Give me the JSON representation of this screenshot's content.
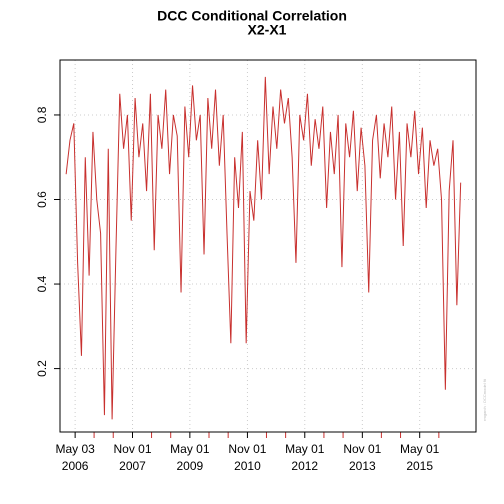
{
  "chart_data": {
    "type": "line",
    "title": "DCC Conditional Correlation",
    "subtitle": "X2-X1",
    "watermark": "rmgarch : DCCmodel fit",
    "color": "#c8302e",
    "grid": true,
    "x": [
      2006.1,
      2006.2,
      2006.3,
      2006.4,
      2006.5,
      2006.6,
      2006.7,
      2006.8,
      2006.9,
      2007.0,
      2007.1,
      2007.2,
      2007.3,
      2007.4,
      2007.5,
      2007.6,
      2007.7,
      2007.8,
      2007.9,
      2008.0,
      2008.1,
      2008.2,
      2008.3,
      2008.4,
      2008.5,
      2008.6,
      2008.7,
      2008.8,
      2008.9,
      2009.0,
      2009.1,
      2009.2,
      2009.3,
      2009.4,
      2009.5,
      2009.6,
      2009.7,
      2009.8,
      2009.9,
      2010.0,
      2010.1,
      2010.2,
      2010.3,
      2010.4,
      2010.5,
      2010.6,
      2010.7,
      2010.8,
      2010.9,
      2011.0,
      2011.1,
      2011.2,
      2011.3,
      2011.4,
      2011.5,
      2011.6,
      2011.7,
      2011.8,
      2011.9,
      2012.0,
      2012.1,
      2012.2,
      2012.3,
      2012.4,
      2012.5,
      2012.6,
      2012.7,
      2012.8,
      2012.9,
      2013.0,
      2013.1,
      2013.2,
      2013.3,
      2013.4,
      2013.5,
      2013.6,
      2013.7,
      2013.8,
      2013.9,
      2014.0,
      2014.1,
      2014.2,
      2014.3,
      2014.4,
      2014.5,
      2014.6,
      2014.7,
      2014.8,
      2014.9,
      2015.0,
      2015.1,
      2015.2,
      2015.3,
      2015.4,
      2015.5,
      2015.6,
      2015.7,
      2015.8,
      2015.9,
      2016.0,
      2016.1,
      2016.2,
      2016.3,
      2016.4
    ],
    "values": [
      0.66,
      0.74,
      0.78,
      0.45,
      0.23,
      0.7,
      0.42,
      0.76,
      0.6,
      0.52,
      0.09,
      0.72,
      0.08,
      0.48,
      0.85,
      0.72,
      0.8,
      0.55,
      0.84,
      0.7,
      0.78,
      0.62,
      0.85,
      0.48,
      0.8,
      0.72,
      0.86,
      0.66,
      0.8,
      0.75,
      0.38,
      0.82,
      0.7,
      0.87,
      0.74,
      0.8,
      0.47,
      0.84,
      0.72,
      0.86,
      0.68,
      0.8,
      0.52,
      0.26,
      0.7,
      0.58,
      0.76,
      0.26,
      0.62,
      0.55,
      0.74,
      0.6,
      0.89,
      0.66,
      0.82,
      0.72,
      0.86,
      0.78,
      0.84,
      0.7,
      0.45,
      0.8,
      0.74,
      0.85,
      0.68,
      0.79,
      0.72,
      0.82,
      0.58,
      0.76,
      0.66,
      0.8,
      0.44,
      0.78,
      0.7,
      0.81,
      0.62,
      0.77,
      0.68,
      0.38,
      0.74,
      0.8,
      0.65,
      0.78,
      0.7,
      0.82,
      0.6,
      0.76,
      0.49,
      0.78,
      0.7,
      0.81,
      0.66,
      0.77,
      0.58,
      0.74,
      0.68,
      0.72,
      0.6,
      0.15,
      0.62,
      0.74,
      0.35,
      0.64
    ],
    "xlim": [
      2005.94,
      2016.8
    ],
    "xticks": [
      {
        "value": 2006.335,
        "label": "May 03\n2006"
      },
      {
        "value": 2007.833,
        "label": "Nov 01\n2007"
      },
      {
        "value": 2009.33,
        "label": "May 01\n2009"
      },
      {
        "value": 2010.833,
        "label": "Nov 01\n2010"
      },
      {
        "value": 2012.33,
        "label": "May 01\n2012"
      },
      {
        "value": 2013.833,
        "label": "Nov 01\n2013"
      },
      {
        "value": 2015.33,
        "label": "May 01\n2015"
      }
    ],
    "minor_xticks": [
      2006.83,
      2007.33,
      2008.33,
      2008.83,
      2009.83,
      2010.33,
      2011.33,
      2011.83,
      2012.83,
      2013.33,
      2014.33,
      2014.83,
      2015.83
    ],
    "ylim": [
      0.05,
      0.93
    ],
    "yticks": [
      0.2,
      0.4,
      0.6,
      0.8
    ]
  }
}
